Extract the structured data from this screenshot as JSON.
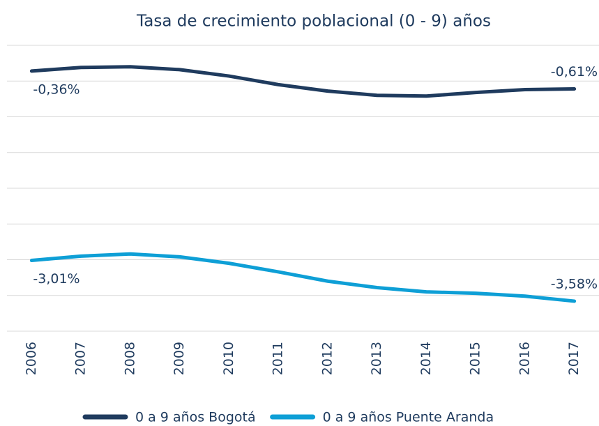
{
  "chart_data": {
    "type": "line",
    "title": "Tasa de crecimiento poblacional (0 - 9) años",
    "categories": [
      "2006",
      "2007",
      "2008",
      "2009",
      "2010",
      "2011",
      "2012",
      "2013",
      "2014",
      "2015",
      "2016",
      "2017"
    ],
    "series": [
      {
        "name": "0 a 9 años Bogotá",
        "color": "#1f3b5e",
        "values": [
          -0.36,
          -0.31,
          -0.3,
          -0.34,
          -0.43,
          -0.55,
          -0.64,
          -0.7,
          -0.71,
          -0.66,
          -0.62,
          -0.61
        ],
        "value_labels": [
          "-0,36%",
          null,
          null,
          null,
          null,
          null,
          null,
          null,
          null,
          null,
          null,
          "-0,61%"
        ]
      },
      {
        "name": "0 a 9 años Puente Aranda",
        "color": "#0e9fd6",
        "values": [
          -3.01,
          -2.95,
          -2.92,
          -2.96,
          -3.05,
          -3.17,
          -3.3,
          -3.39,
          -3.45,
          -3.47,
          -3.51,
          -3.58
        ],
        "value_labels": [
          "-3,01%",
          null,
          null,
          null,
          null,
          null,
          null,
          null,
          null,
          null,
          null,
          "-3,58%"
        ]
      }
    ],
    "ylim": [
      -4,
      0
    ],
    "yticks": [
      0,
      -0.5,
      -1,
      -1.5,
      -2,
      -2.5,
      -3,
      -3.5,
      -4
    ],
    "grid": true,
    "legend": "bottom"
  }
}
